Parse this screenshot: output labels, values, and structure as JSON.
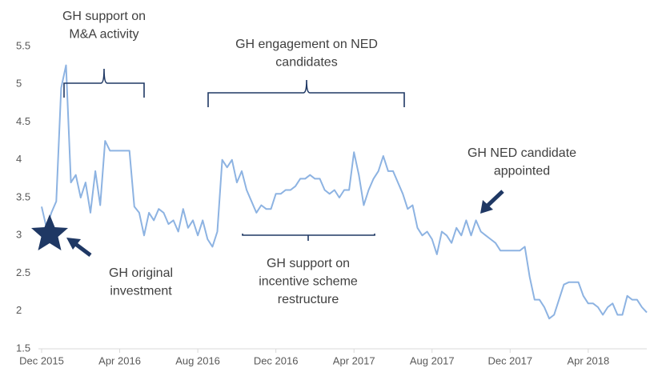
{
  "chart_data": {
    "type": "line",
    "series": [
      {
        "color": "#8db3e2",
        "x": [
          0,
          0.25,
          0.5,
          0.75,
          1,
          1.25,
          1.5,
          1.75,
          2,
          2.25,
          2.5,
          2.75,
          3,
          3.25,
          3.5,
          3.75,
          4,
          4.25,
          4.5,
          4.75,
          5,
          5.25,
          5.5,
          5.75,
          6,
          6.25,
          6.5,
          6.75,
          7,
          7.25,
          7.5,
          7.75,
          8,
          8.25,
          8.5,
          8.75,
          9,
          9.25,
          9.5,
          9.75,
          10,
          10.25,
          10.5,
          10.75,
          11,
          11.25,
          11.5,
          11.75,
          12,
          12.25,
          12.5,
          12.75,
          13,
          13.25,
          13.5,
          13.75,
          14,
          14.25,
          14.5,
          14.75,
          15,
          15.25,
          15.5,
          15.75,
          16,
          16.25,
          16.5,
          16.75,
          17,
          17.25,
          17.5,
          17.75,
          18,
          18.25,
          18.5,
          18.75,
          19,
          19.25,
          19.5,
          19.75,
          20,
          20.25,
          20.5,
          20.75,
          21,
          21.25,
          21.5,
          21.75,
          22,
          22.25,
          22.5,
          22.75,
          23,
          23.25,
          23.5,
          23.75,
          24,
          24.25,
          24.5,
          24.75,
          25,
          25.25,
          25.5,
          25.75,
          26,
          26.25,
          26.5,
          26.75,
          27,
          27.25,
          27.5,
          27.75,
          28,
          28.25,
          28.5,
          28.75,
          29,
          29.25,
          29.5,
          29.75,
          30,
          30.25,
          30.5,
          30.75,
          31
        ],
        "values": [
          3.38,
          3.1,
          3.3,
          3.45,
          4.95,
          5.25,
          3.7,
          3.8,
          3.5,
          3.7,
          3.3,
          3.85,
          3.4,
          4.25,
          4.12,
          4.12,
          4.12,
          4.12,
          4.12,
          3.38,
          3.3,
          3.0,
          3.3,
          3.2,
          3.35,
          3.3,
          3.15,
          3.2,
          3.05,
          3.35,
          3.1,
          3.2,
          3.0,
          3.2,
          2.95,
          2.85,
          3.05,
          4.0,
          3.9,
          4.0,
          3.7,
          3.85,
          3.6,
          3.45,
          3.3,
          3.4,
          3.35,
          3.35,
          3.55,
          3.55,
          3.6,
          3.6,
          3.65,
          3.75,
          3.75,
          3.8,
          3.75,
          3.75,
          3.6,
          3.55,
          3.6,
          3.5,
          3.6,
          3.6,
          4.1,
          3.8,
          3.4,
          3.6,
          3.75,
          3.85,
          4.05,
          3.85,
          3.85,
          3.7,
          3.55,
          3.35,
          3.4,
          3.1,
          3.0,
          3.05,
          2.95,
          2.75,
          3.05,
          3.0,
          2.9,
          3.1,
          3.0,
          3.2,
          3.0,
          3.2,
          3.05,
          3.0,
          2.95,
          2.9,
          2.8,
          2.8,
          2.8,
          2.8,
          2.8,
          2.85,
          2.45,
          2.15,
          2.15,
          2.05,
          1.9,
          1.95,
          2.15,
          2.35,
          2.38,
          2.38,
          2.38,
          2.2,
          2.1,
          2.1,
          2.05,
          1.95,
          2.05,
          2.1,
          1.95,
          1.95,
          2.2,
          2.15,
          2.15,
          2.05,
          1.98
        ]
      }
    ],
    "xlim": [
      0,
      31
    ],
    "xticks": [
      {
        "value": 0,
        "label": "Dec 2015"
      },
      {
        "value": 4,
        "label": "Apr 2016"
      },
      {
        "value": 8,
        "label": "Aug 2016"
      },
      {
        "value": 12,
        "label": "Dec 2016"
      },
      {
        "value": 16,
        "label": "Apr 2017"
      },
      {
        "value": 20,
        "label": "Aug 2017"
      },
      {
        "value": 24,
        "label": "Dec 2017"
      },
      {
        "value": 28,
        "label": "Apr 2018"
      }
    ],
    "ylim": [
      1.5,
      5.5
    ],
    "yticks": [
      1.5,
      2,
      2.5,
      3,
      3.5,
      4,
      4.5,
      5,
      5.5
    ],
    "annotations": [
      [
        "GH support on",
        "M&A activity"
      ],
      [
        "GH engagement on NED",
        "candidates"
      ],
      [
        "GH NED candidate",
        "appointed"
      ],
      [
        "GH original",
        "investment"
      ],
      [
        "GH support on",
        "incentive scheme",
        "restructure"
      ]
    ]
  }
}
